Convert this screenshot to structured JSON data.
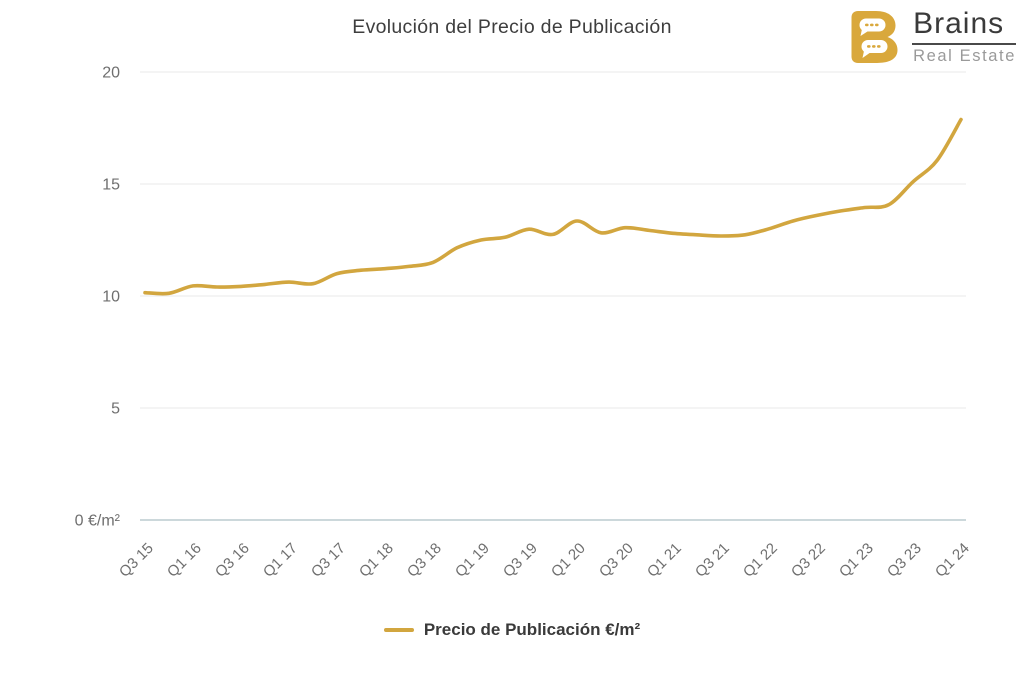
{
  "page": {
    "background": "#ffffff"
  },
  "header": {
    "title": "Evolución del Precio de Publicación",
    "logo": {
      "brand": "Brains",
      "tagline": "Real Estate",
      "mark_icon": "speech-bubbles-B",
      "mark_color": "#d9a83c"
    }
  },
  "chart_data": {
    "type": "line",
    "title": "Evolución del Precio de Publicación",
    "categories": [
      "Q3 15",
      "Q4 15",
      "Q1 16",
      "Q2 16",
      "Q3 16",
      "Q4 16",
      "Q1 17",
      "Q2 17",
      "Q3 17",
      "Q4 17",
      "Q1 18",
      "Q2 18",
      "Q3 18",
      "Q4 18",
      "Q1 19",
      "Q2 19",
      "Q3 19",
      "Q4 19",
      "Q1 20",
      "Q2 20",
      "Q3 20",
      "Q4 20",
      "Q1 21",
      "Q2 21",
      "Q3 21",
      "Q4 21",
      "Q1 22",
      "Q2 22",
      "Q3 22",
      "Q4 22",
      "Q1 23",
      "Q2 23",
      "Q3 23",
      "Q4 23",
      "Q1 24"
    ],
    "x_tick_labels": [
      "Q3 15",
      "Q1 16",
      "Q3 16",
      "Q1 17",
      "Q3 17",
      "Q1 18",
      "Q3 18",
      "Q1 19",
      "Q3 19",
      "Q1 20",
      "Q3 20",
      "Q1 21",
      "Q3 21",
      "Q1 22",
      "Q3 22",
      "Q1 23",
      "Q3 23",
      "Q1 24"
    ],
    "x_tick_every": 2,
    "x_label_rotation": -45,
    "series": [
      {
        "name": "Precio de Publicación €/m²",
        "color": "#d2a63f",
        "values": [
          10.15,
          10.12,
          10.45,
          10.4,
          10.43,
          10.52,
          10.62,
          10.55,
          11.0,
          11.15,
          11.22,
          11.32,
          11.5,
          12.15,
          12.5,
          12.62,
          12.98,
          12.75,
          13.35,
          12.82,
          13.05,
          12.93,
          12.8,
          12.73,
          12.68,
          12.73,
          13.0,
          13.35,
          13.6,
          13.8,
          13.95,
          14.08,
          15.1,
          16.05,
          17.88
        ]
      }
    ],
    "xlabel": "",
    "ylabel": "",
    "ylim": [
      0,
      20
    ],
    "y_tick_values": [
      20,
      15,
      10,
      5,
      0
    ],
    "y_tick_labels": [
      "20",
      "15",
      "10",
      "5",
      "0 €/m²"
    ],
    "grid": "horizontal-only",
    "grid_color": "#e8e8e8",
    "baseline_color": "#ccd8db",
    "legend_position": "bottom-center"
  },
  "legend": {
    "items": [
      {
        "label": "Precio de Publicación €/m²",
        "color": "#d2a63f"
      }
    ]
  }
}
